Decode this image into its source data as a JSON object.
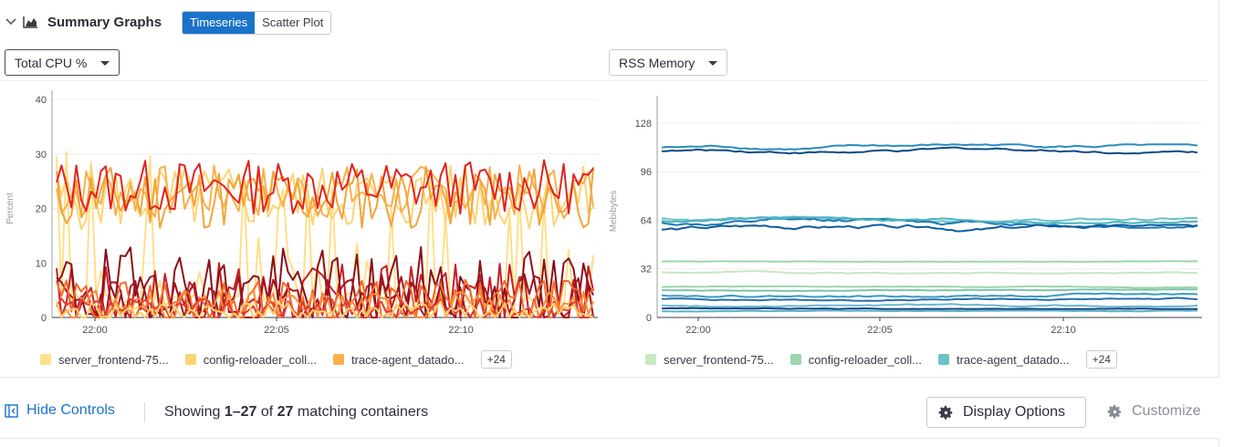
{
  "header": {
    "title": "Summary Graphs",
    "tabs": [
      {
        "label": "Timeseries",
        "active": true
      },
      {
        "label": "Scatter Plot",
        "active": false
      }
    ]
  },
  "left_chart": {
    "metric_select": "Total CPU %",
    "ylabel": "Percent",
    "legend": [
      {
        "label": "server_frontend-75...",
        "color": "#fde08a"
      },
      {
        "label": "config-reloader_coll...",
        "color": "#fdd474"
      },
      {
        "label": "trace-agent_datado...",
        "color": "#fbb04a"
      }
    ],
    "more_label": "+24"
  },
  "right_chart": {
    "metric_select": "RSS Memory",
    "ylabel": "Mebibytes",
    "legend": [
      {
        "label": "server_frontend-75...",
        "color": "#c8e8c0"
      },
      {
        "label": "config-reloader_coll...",
        "color": "#9ed6ae"
      },
      {
        "label": "trace-agent_datado...",
        "color": "#6cc3c6"
      }
    ],
    "more_label": "+24"
  },
  "footer": {
    "hide_controls": "Hide Controls",
    "showing_prefix": "Showing ",
    "showing_range": "1–27",
    "showing_of": " of ",
    "showing_total": "27",
    "showing_suffix": " matching containers",
    "display_options": "Display Options",
    "customize": "Customize"
  },
  "chart_data": [
    {
      "type": "line",
      "title": "",
      "xlabel": "",
      "ylabel": "Percent",
      "ylim": [
        0,
        40
      ],
      "yticks": [
        "0",
        "10",
        "20",
        "30",
        "40"
      ],
      "xticks": [
        "22:00",
        "22:05",
        "22:10"
      ],
      "series": [
        {
          "name": "server_frontend-75...",
          "color": "#fde08a",
          "base": 1.5,
          "amp": 30,
          "spiky": true,
          "seed": 3
        },
        {
          "name": "config-reloader_coll...",
          "color": "#fdd474",
          "base": 22,
          "amp": 6,
          "seed": 5
        },
        {
          "name": "trace-agent_datado...",
          "color": "#fbb04a",
          "base": 23,
          "amp": 5,
          "seed": 7
        },
        {
          "color": "#f2a53a",
          "base": 22,
          "amp": 6,
          "seed": 11
        },
        {
          "color": "#e0231e",
          "base": 24,
          "amp": 5,
          "seed": 13
        },
        {
          "color": "#c81d25",
          "base": 4,
          "amp": 6,
          "seed": 17
        },
        {
          "color": "#8b0f1a",
          "base": 5,
          "amp": 8,
          "seed": 19
        },
        {
          "color": "#a3141e",
          "base": 3,
          "amp": 5,
          "seed": 23
        },
        {
          "color": "#f46a2a",
          "base": 3,
          "amp": 4,
          "seed": 29
        },
        {
          "color": "#fb8c3c",
          "base": 2,
          "amp": 3,
          "seed": 31
        },
        {
          "color": "#e53a2f",
          "base": 1.5,
          "amp": 2,
          "seed": 37
        },
        {
          "color": "#fecf6a",
          "base": 1,
          "amp": 2,
          "seed": 41
        }
      ]
    },
    {
      "type": "line",
      "title": "",
      "xlabel": "",
      "ylabel": "Mebibytes",
      "ylim": [
        0,
        140
      ],
      "yticks": [
        "0",
        "32",
        "64",
        "96",
        "128"
      ],
      "xticks": [
        "22:00",
        "22:05",
        "22:10"
      ],
      "series": [
        {
          "name": "server_frontend-75...",
          "color": "#c8e8c0",
          "base": 30,
          "amp": 1,
          "seed": 2
        },
        {
          "name": "config-reloader_coll...",
          "color": "#9ed6ae",
          "base": 37,
          "amp": 0.3,
          "seed": 4
        },
        {
          "name": "trace-agent_datado...",
          "color": "#6cc3c6",
          "base": 65,
          "amp": 2,
          "seed": 6
        },
        {
          "color": "#2b8cbe",
          "base": 112,
          "amp": 2,
          "seed": 8
        },
        {
          "color": "#0c4a86",
          "base": 110,
          "amp": 2,
          "seed": 10
        },
        {
          "color": "#1f78b4",
          "base": 62,
          "amp": 3,
          "seed": 12
        },
        {
          "color": "#0a5c9e",
          "base": 58,
          "amp": 3,
          "seed": 14
        },
        {
          "color": "#4ab3c3",
          "base": 64,
          "amp": 2,
          "seed": 16
        },
        {
          "color": "#9ed6ae",
          "base": 20,
          "amp": 0.5,
          "seed": 18
        },
        {
          "color": "#7cc3a8",
          "base": 18,
          "amp": 0.5,
          "seed": 20
        },
        {
          "color": "#3a9bc4",
          "base": 15,
          "amp": 1.5,
          "seed": 22
        },
        {
          "color": "#2a6fae",
          "base": 12,
          "amp": 1,
          "seed": 24
        },
        {
          "color": "#6db8d6",
          "base": 8,
          "amp": 1,
          "seed": 26
        },
        {
          "color": "#10477e",
          "base": 6,
          "amp": 0.5,
          "seed": 28
        },
        {
          "color": "#5fb1c8",
          "base": 4,
          "amp": 0.5,
          "seed": 30
        }
      ]
    }
  ]
}
